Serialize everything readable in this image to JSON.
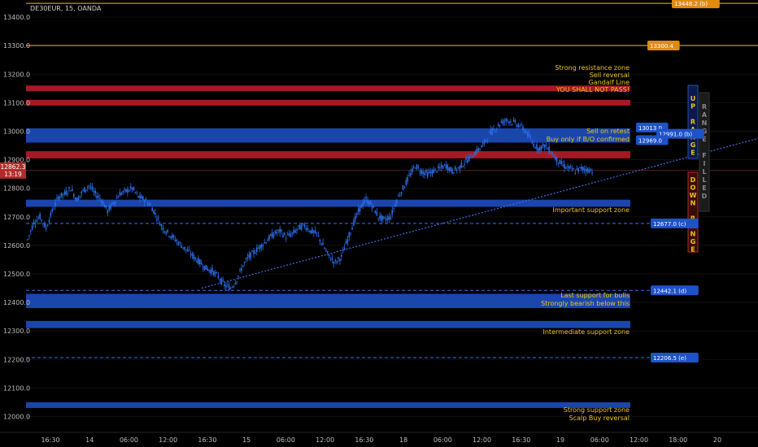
{
  "header": {
    "symbol": "DE30EUR, 15, OANDA"
  },
  "colors": {
    "background": "#000000",
    "resistance_zone": "#c11f2a",
    "support_zone": "#1f52c9",
    "orange_line": "#e08a12",
    "annotation_text": "#f0c419",
    "candle": "#2a6ce6",
    "trendline": "#3c6fe6",
    "price_label_bg": "#b42a2a"
  },
  "price_axis": {
    "ticks": [
      "13400.0",
      "13300.0",
      "13200.0",
      "13100.0",
      "13000.0",
      "12900.0",
      "12800.0",
      "12700.0",
      "12600.0",
      "12500.0",
      "12400.0",
      "12300.0",
      "12200.0",
      "12100.0",
      "12000.0"
    ],
    "current_price": "12862.3",
    "countdown": "13:19"
  },
  "time_axis": {
    "ticks": [
      "16:30",
      "14",
      "06:00",
      "12:00",
      "16:30",
      "15",
      "06:00",
      "12:00",
      "16:30",
      "18",
      "06:00",
      "12:00",
      "16:30",
      "19",
      "06:00",
      "12:00",
      "18:00",
      "20"
    ]
  },
  "horizontal_line_labels": [
    {
      "text": "13448.2 (b)",
      "value": 13448.2
    },
    {
      "text": "13300.4",
      "value": 13300.4
    },
    {
      "text": "13013.0",
      "value": 13013.0
    },
    {
      "text": "12991.0 (b)",
      "value": 12991.0
    },
    {
      "text": "12969.0",
      "value": 12969.0
    },
    {
      "text": "12677.0 (c)",
      "value": 12677.0
    },
    {
      "text": "12442.1 (d)",
      "value": 12442.1
    },
    {
      "text": "12206.5 (e)",
      "value": 12206.5
    }
  ],
  "annotations": [
    {
      "line1": "Strong resistance zone",
      "line2": "Sell reversal"
    },
    {
      "line1": "Gandalf Line",
      "line2": "YOU SHALL NOT PASS!"
    },
    {
      "line1": "Sell on retest",
      "line2": "Buy only if B/O confirmed"
    },
    {
      "line1": "Important support zone",
      "line2": ""
    },
    {
      "line1": "Last support for bulls",
      "line2": "Strongly bearish below this"
    },
    {
      "line1": "Intermediate support zone",
      "line2": ""
    },
    {
      "line1": "Strong support zone",
      "line2": "Scalp Buy reversal"
    }
  ],
  "range_boxes": {
    "up": "UP RANGE",
    "down": "DOWN RANGE",
    "filled": "RANGE FILLED"
  },
  "chart_data": {
    "type": "candlestick",
    "instrument": "DE30EUR",
    "timeframe": "15",
    "ylim": [
      11950,
      13460
    ],
    "zones": [
      {
        "kind": "resistance",
        "low": 13140,
        "high": 13160
      },
      {
        "kind": "resistance",
        "low": 13090,
        "high": 13110
      },
      {
        "kind": "support",
        "low": 12960,
        "high": 13010
      },
      {
        "kind": "resistance",
        "low": 12905,
        "high": 12930
      },
      {
        "kind": "support",
        "low": 12735,
        "high": 12760
      },
      {
        "kind": "support",
        "low": 12380,
        "high": 12430
      },
      {
        "kind": "support",
        "low": 12310,
        "high": 12335
      },
      {
        "kind": "support",
        "low": 12030,
        "high": 12050
      }
    ],
    "orange_levels": [
      13448.2,
      13300.4
    ],
    "dashed_levels": [
      12677.0,
      12442.1,
      12206.5
    ],
    "trendline": [
      {
        "x": 0.24,
        "y": 12450
      },
      {
        "x": 1.0,
        "y": 12975
      }
    ],
    "close_path": [
      12620,
      12680,
      12700,
      12660,
      12720,
      12770,
      12780,
      12800,
      12760,
      12790,
      12810,
      12780,
      12760,
      12720,
      12750,
      12780,
      12790,
      12800,
      12770,
      12760,
      12740,
      12700,
      12660,
      12640,
      12620,
      12600,
      12580,
      12560,
      12540,
      12520,
      12510,
      12490,
      12460,
      12450,
      12480,
      12530,
      12560,
      12580,
      12600,
      12620,
      12640,
      12650,
      12630,
      12640,
      12660,
      12670,
      12650,
      12640,
      12600,
      12560,
      12540,
      12560,
      12620,
      12680,
      12730,
      12760,
      12740,
      12700,
      12690,
      12700,
      12760,
      12800,
      12840,
      12880,
      12860,
      12850,
      12860,
      12870,
      12880,
      12860,
      12870,
      12890,
      12910,
      12930,
      12950,
      12990,
      13010,
      13030,
      13040,
      13030,
      13020,
      13000,
      12960,
      12940,
      12950,
      12930,
      12900,
      12880,
      12870,
      12860,
      12870,
      12865,
      12862
    ]
  }
}
